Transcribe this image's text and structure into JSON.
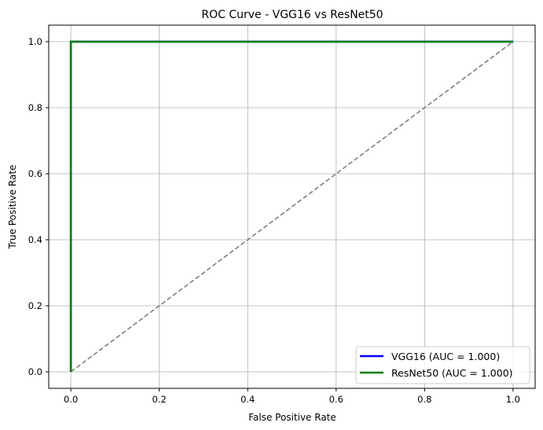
{
  "chart_data": {
    "type": "line",
    "title": "ROC Curve - VGG16 vs ResNet50",
    "xlabel": "False Positive Rate",
    "ylabel": "True Positive Rate",
    "xlim": [
      -0.05,
      1.05
    ],
    "ylim": [
      -0.05,
      1.05
    ],
    "xticks": [
      "0.0",
      "0.2",
      "0.4",
      "0.6",
      "0.8",
      "1.0"
    ],
    "yticks": [
      "0.0",
      "0.2",
      "0.4",
      "0.6",
      "0.8",
      "1.0"
    ],
    "grid": true,
    "legend_position": "lower-right",
    "series": [
      {
        "name": "VGG16 (AUC = 1.000)",
        "color": "#0000ff",
        "x": [
          0,
          0,
          1
        ],
        "y": [
          0,
          1,
          1
        ]
      },
      {
        "name": "ResNet50 (AUC = 1.000)",
        "color": "#008000",
        "x": [
          0,
          0,
          1
        ],
        "y": [
          0,
          1,
          1
        ]
      }
    ],
    "reference_line": {
      "color": "#808080",
      "x": [
        0,
        1
      ],
      "y": [
        0,
        1
      ],
      "style": "dashed"
    }
  }
}
